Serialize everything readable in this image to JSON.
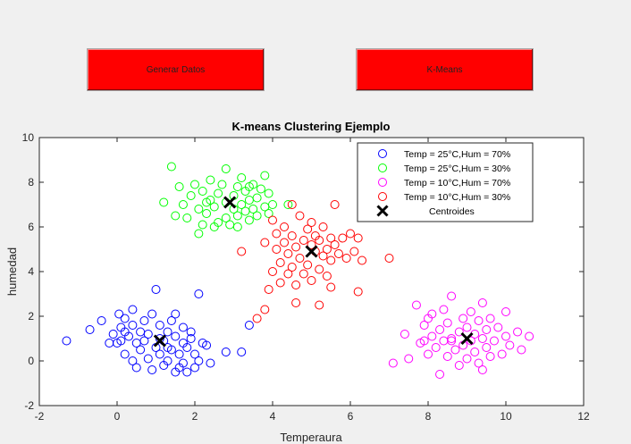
{
  "buttons": {
    "generar": "Generar Datos",
    "kmeans": "K-Means"
  },
  "chart_data": {
    "type": "scatter",
    "title": "K-means Clustering Ejemplo",
    "xlabel": "Temperaura",
    "ylabel": "humedad",
    "xlim": [
      -2,
      12
    ],
    "ylim": [
      -2,
      10
    ],
    "xticks": [
      -2,
      0,
      2,
      4,
      6,
      8,
      10,
      12
    ],
    "yticks": [
      -2,
      0,
      2,
      4,
      6,
      8,
      10
    ],
    "grid": false,
    "legend_position": "top-right",
    "series": [
      {
        "name": "Temp = 25°C,Hum = 70%",
        "color": "#0000ff",
        "marker": "circle",
        "points": [
          [
            -1.3,
            0.9
          ],
          [
            -0.7,
            1.4
          ],
          [
            -0.4,
            1.8
          ],
          [
            -0.2,
            0.8
          ],
          [
            -0.1,
            1.2
          ],
          [
            0,
            0.8
          ],
          [
            0.05,
            2.1
          ],
          [
            0.1,
            1.5
          ],
          [
            0.1,
            0.9
          ],
          [
            0.2,
            1.9
          ],
          [
            0.2,
            0.3
          ],
          [
            0.3,
            1.1
          ],
          [
            0.4,
            1.6
          ],
          [
            0.4,
            2.3
          ],
          [
            0.4,
            0.0
          ],
          [
            0.5,
            -0.3
          ],
          [
            0.5,
            0.8
          ],
          [
            0.6,
            1.3
          ],
          [
            0.6,
            0.5
          ],
          [
            0.7,
            1.8
          ],
          [
            0.8,
            0.1
          ],
          [
            0.8,
            1.2
          ],
          [
            0.9,
            2.1
          ],
          [
            0.9,
            -0.4
          ],
          [
            1.0,
            0.6
          ],
          [
            1.0,
            3.2
          ],
          [
            1.1,
            1.0
          ],
          [
            1.1,
            0.3
          ],
          [
            1.1,
            1.6
          ],
          [
            1.2,
            -0.2
          ],
          [
            1.2,
            0.9
          ],
          [
            1.3,
            1.3
          ],
          [
            1.3,
            0.0
          ],
          [
            1.4,
            0.5
          ],
          [
            1.4,
            1.8
          ],
          [
            1.5,
            -0.5
          ],
          [
            1.5,
            2.1
          ],
          [
            1.5,
            1.1
          ],
          [
            1.6,
            0.3
          ],
          [
            1.7,
            0.8
          ],
          [
            1.7,
            -0.1
          ],
          [
            1.7,
            1.5
          ],
          [
            1.8,
            0.6
          ],
          [
            1.8,
            -0.5
          ],
          [
            1.9,
            1.0
          ],
          [
            1.9,
            1.3
          ],
          [
            2.0,
            0.3
          ],
          [
            2.0,
            -0.3
          ],
          [
            2.1,
            0.0
          ],
          [
            2.1,
            3.0
          ],
          [
            2.2,
            0.8
          ],
          [
            2.3,
            0.7
          ],
          [
            2.4,
            -0.1
          ],
          [
            2.8,
            0.4
          ],
          [
            3.2,
            0.4
          ],
          [
            3.4,
            1.6
          ],
          [
            1.6,
            -0.3
          ],
          [
            0.2,
            1.3
          ],
          [
            0.7,
            0.9
          ],
          [
            1.3,
            0.6
          ]
        ]
      },
      {
        "name": "Temp = 25°C,Hum = 30%",
        "color": "#00ff00",
        "marker": "circle",
        "points": [
          [
            1.2,
            7.1
          ],
          [
            1.4,
            8.7
          ],
          [
            1.5,
            6.5
          ],
          [
            1.6,
            7.8
          ],
          [
            1.7,
            7.0
          ],
          [
            1.8,
            6.4
          ],
          [
            1.9,
            7.4
          ],
          [
            2.0,
            7.9
          ],
          [
            2.1,
            5.7
          ],
          [
            2.1,
            6.8
          ],
          [
            2.2,
            6.1
          ],
          [
            2.2,
            7.6
          ],
          [
            2.3,
            6.6
          ],
          [
            2.4,
            7.2
          ],
          [
            2.4,
            8.1
          ],
          [
            2.5,
            6.0
          ],
          [
            2.5,
            6.9
          ],
          [
            2.6,
            7.5
          ],
          [
            2.7,
            7.9
          ],
          [
            2.8,
            6.4
          ],
          [
            2.8,
            7.1
          ],
          [
            2.8,
            8.6
          ],
          [
            2.9,
            6.1
          ],
          [
            3.0,
            6.8
          ],
          [
            3.0,
            7.4
          ],
          [
            3.1,
            7.8
          ],
          [
            3.1,
            6.5
          ],
          [
            3.2,
            7.0
          ],
          [
            3.2,
            8.2
          ],
          [
            3.3,
            6.7
          ],
          [
            3.3,
            7.6
          ],
          [
            3.4,
            6.3
          ],
          [
            3.4,
            7.2
          ],
          [
            3.5,
            6.8
          ],
          [
            3.5,
            7.9
          ],
          [
            3.6,
            7.3
          ],
          [
            3.6,
            6.5
          ],
          [
            3.7,
            7.7
          ],
          [
            3.8,
            6.9
          ],
          [
            3.8,
            8.3
          ],
          [
            3.9,
            7.5
          ],
          [
            4.0,
            7.0
          ],
          [
            4.4,
            7.0
          ],
          [
            3.1,
            6.0
          ],
          [
            2.6,
            6.2
          ],
          [
            3.9,
            6.6
          ],
          [
            3.4,
            7.8
          ],
          [
            2.3,
            7.1
          ]
        ]
      },
      {
        "name": "Temp = 10°C,Hum = 70%",
        "color": "#ff00ff",
        "marker": "circle",
        "points": [
          [
            7.1,
            -0.1
          ],
          [
            7.4,
            1.2
          ],
          [
            7.5,
            0.1
          ],
          [
            7.7,
            2.5
          ],
          [
            7.8,
            0.8
          ],
          [
            7.9,
            1.6
          ],
          [
            8.0,
            0.3
          ],
          [
            8.1,
            1.1
          ],
          [
            8.1,
            2.1
          ],
          [
            8.2,
            0.6
          ],
          [
            8.3,
            1.4
          ],
          [
            8.3,
            -0.6
          ],
          [
            8.4,
            0.9
          ],
          [
            8.4,
            2.3
          ],
          [
            8.5,
            1.7
          ],
          [
            8.5,
            0.2
          ],
          [
            8.6,
            2.9
          ],
          [
            8.6,
            1.0
          ],
          [
            8.7,
            0.5
          ],
          [
            8.8,
            1.3
          ],
          [
            8.8,
            -0.2
          ],
          [
            8.9,
            1.9
          ],
          [
            8.9,
            0.7
          ],
          [
            9.0,
            0.1
          ],
          [
            9.0,
            1.5
          ],
          [
            9.1,
            2.2
          ],
          [
            9.1,
            0.9
          ],
          [
            9.2,
            0.4
          ],
          [
            9.2,
            1.2
          ],
          [
            9.3,
            1.8
          ],
          [
            9.3,
            -0.1
          ],
          [
            9.4,
            1.0
          ],
          [
            9.4,
            2.6
          ],
          [
            9.5,
            0.6
          ],
          [
            9.5,
            1.4
          ],
          [
            9.6,
            0.2
          ],
          [
            9.6,
            1.9
          ],
          [
            9.7,
            0.9
          ],
          [
            9.8,
            1.5
          ],
          [
            9.9,
            0.3
          ],
          [
            10.0,
            1.1
          ],
          [
            10.0,
            2.2
          ],
          [
            10.1,
            0.7
          ],
          [
            10.3,
            1.3
          ],
          [
            10.4,
            0.5
          ],
          [
            10.6,
            1.1
          ],
          [
            8.0,
            1.9
          ],
          [
            9.4,
            -0.4
          ],
          [
            7.9,
            0.9
          ],
          [
            8.6,
            0.9
          ]
        ]
      },
      {
        "name": "Temp = 10°C,Hum = 30%",
        "color": "#ff0000",
        "marker": "circle",
        "points": [
          [
            3.2,
            4.9
          ],
          [
            3.6,
            1.9
          ],
          [
            3.8,
            2.3
          ],
          [
            3.8,
            5.3
          ],
          [
            4.0,
            4.0
          ],
          [
            4.0,
            6.3
          ],
          [
            4.1,
            5.0
          ],
          [
            4.1,
            5.7
          ],
          [
            4.2,
            4.4
          ],
          [
            4.2,
            3.5
          ],
          [
            4.3,
            5.3
          ],
          [
            4.3,
            6.0
          ],
          [
            4.4,
            4.8
          ],
          [
            4.4,
            3.9
          ],
          [
            4.5,
            5.6
          ],
          [
            4.5,
            4.2
          ],
          [
            4.5,
            7.0
          ],
          [
            4.6,
            5.1
          ],
          [
            4.6,
            3.4
          ],
          [
            4.7,
            4.6
          ],
          [
            4.7,
            6.5
          ],
          [
            4.8,
            5.4
          ],
          [
            4.8,
            3.9
          ],
          [
            4.9,
            5.9
          ],
          [
            4.9,
            4.3
          ],
          [
            5.0,
            5.2
          ],
          [
            5.0,
            3.6
          ],
          [
            5.0,
            6.2
          ],
          [
            5.1,
            4.9
          ],
          [
            5.1,
            5.6
          ],
          [
            5.2,
            4.1
          ],
          [
            5.2,
            5.4
          ],
          [
            5.3,
            4.7
          ],
          [
            5.3,
            6.0
          ],
          [
            5.4,
            5.0
          ],
          [
            5.4,
            3.8
          ],
          [
            5.5,
            5.5
          ],
          [
            5.5,
            4.5
          ],
          [
            5.6,
            7.0
          ],
          [
            5.6,
            5.2
          ],
          [
            5.7,
            4.8
          ],
          [
            5.8,
            5.5
          ],
          [
            5.9,
            4.6
          ],
          [
            6.0,
            5.7
          ],
          [
            6.1,
            4.9
          ],
          [
            6.2,
            5.5
          ],
          [
            6.2,
            3.1
          ],
          [
            6.3,
            4.5
          ],
          [
            7.0,
            4.6
          ],
          [
            3.9,
            3.2
          ],
          [
            4.6,
            2.6
          ],
          [
            5.2,
            2.5
          ],
          [
            5.5,
            3.3
          ]
        ]
      }
    ],
    "centroids": {
      "name": "Centroides",
      "color": "#000000",
      "marker": "x",
      "points": [
        [
          1.1,
          0.9
        ],
        [
          2.9,
          7.1
        ],
        [
          5.0,
          4.9
        ],
        [
          9.0,
          1.0
        ]
      ]
    }
  }
}
